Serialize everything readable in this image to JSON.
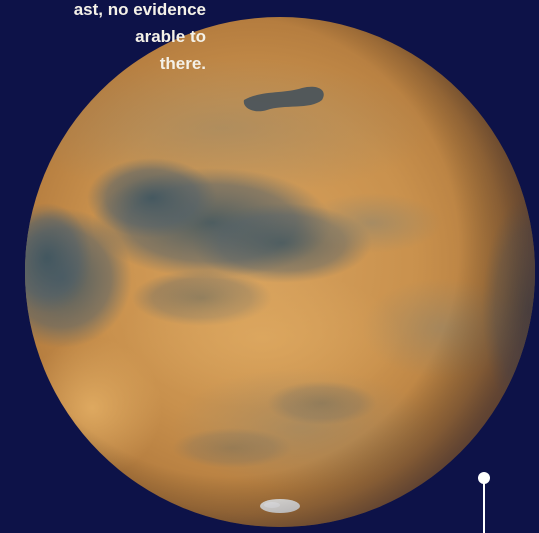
{
  "caption": {
    "line1": "ast, no evidence",
    "line2": "arable to",
    "line3": "there."
  },
  "image": {
    "subject": "planet-mars-photo-icon",
    "background_color": "#0d1248",
    "caption_color": "#f4f1e8",
    "callout_color": "#ffffff"
  }
}
